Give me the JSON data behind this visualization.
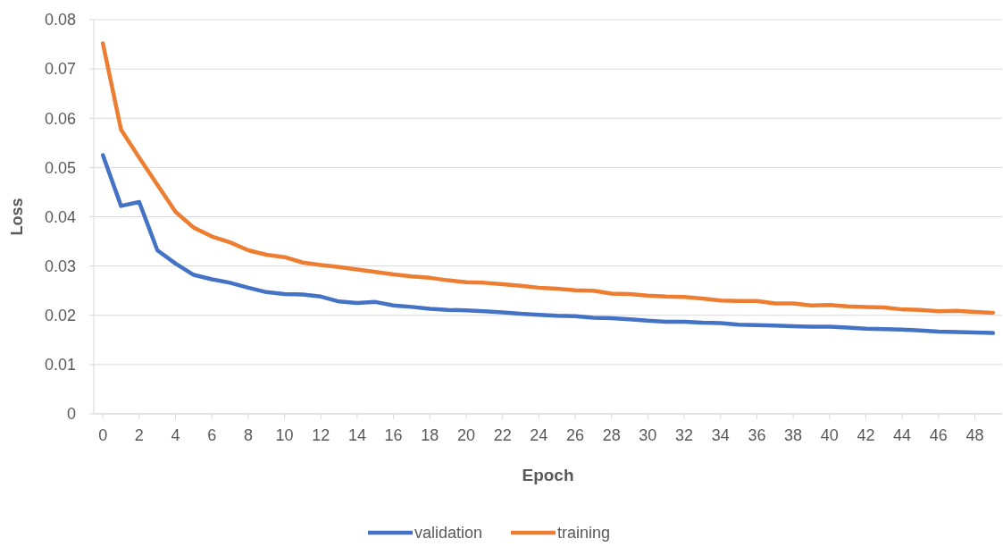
{
  "chart_data": {
    "type": "line",
    "xlabel": "Epoch",
    "ylabel": "Loss",
    "x": [
      0,
      1,
      2,
      3,
      4,
      5,
      6,
      7,
      8,
      9,
      10,
      11,
      12,
      13,
      14,
      15,
      16,
      17,
      18,
      19,
      20,
      21,
      22,
      23,
      24,
      25,
      26,
      27,
      28,
      29,
      30,
      31,
      32,
      33,
      34,
      35,
      36,
      37,
      38,
      39,
      40,
      41,
      42,
      43,
      44,
      45,
      46,
      47,
      48,
      49
    ],
    "xlim": [
      -0.5,
      49.5
    ],
    "xticks": [
      0,
      2,
      4,
      6,
      8,
      10,
      12,
      14,
      16,
      18,
      20,
      22,
      24,
      26,
      28,
      30,
      32,
      34,
      36,
      38,
      40,
      42,
      44,
      46,
      48
    ],
    "ylim": [
      0,
      0.08
    ],
    "yticks": [
      0,
      0.01,
      0.02,
      0.03,
      0.04,
      0.05,
      0.06,
      0.07,
      0.08
    ],
    "grid": "y",
    "legend": "bottom",
    "marker": "none",
    "line_style": "solid",
    "series": [
      {
        "name": "validation",
        "color": "#4472c4",
        "values": [
          0.0525,
          0.0422,
          0.043,
          0.0332,
          0.0305,
          0.0282,
          0.0273,
          0.0266,
          0.0256,
          0.0247,
          0.0243,
          0.0242,
          0.0238,
          0.0228,
          0.0225,
          0.0227,
          0.022,
          0.0217,
          0.0213,
          0.0211,
          0.021,
          0.0208,
          0.0206,
          0.0203,
          0.0201,
          0.0199,
          0.0198,
          0.0195,
          0.0194,
          0.0192,
          0.0189,
          0.0187,
          0.0187,
          0.0185,
          0.0184,
          0.0181,
          0.018,
          0.0179,
          0.0178,
          0.0177,
          0.0177,
          0.0175,
          0.0173,
          0.0172,
          0.0171,
          0.0169,
          0.0167,
          0.0166,
          0.0165,
          0.0164
        ]
      },
      {
        "name": "training",
        "color": "#ed7d31",
        "values": [
          0.0752,
          0.0577,
          0.052,
          0.0465,
          0.041,
          0.0378,
          0.036,
          0.0348,
          0.0332,
          0.0323,
          0.0318,
          0.0307,
          0.0302,
          0.0298,
          0.0293,
          0.0288,
          0.0283,
          0.0279,
          0.0276,
          0.0271,
          0.0267,
          0.0266,
          0.0263,
          0.026,
          0.0256,
          0.0254,
          0.0251,
          0.025,
          0.0244,
          0.0243,
          0.024,
          0.0238,
          0.0237,
          0.0234,
          0.023,
          0.0229,
          0.0229,
          0.0224,
          0.0224,
          0.022,
          0.0221,
          0.0218,
          0.0217,
          0.0216,
          0.0212,
          0.0211,
          0.0208,
          0.0209,
          0.0207,
          0.0205
        ]
      }
    ]
  }
}
